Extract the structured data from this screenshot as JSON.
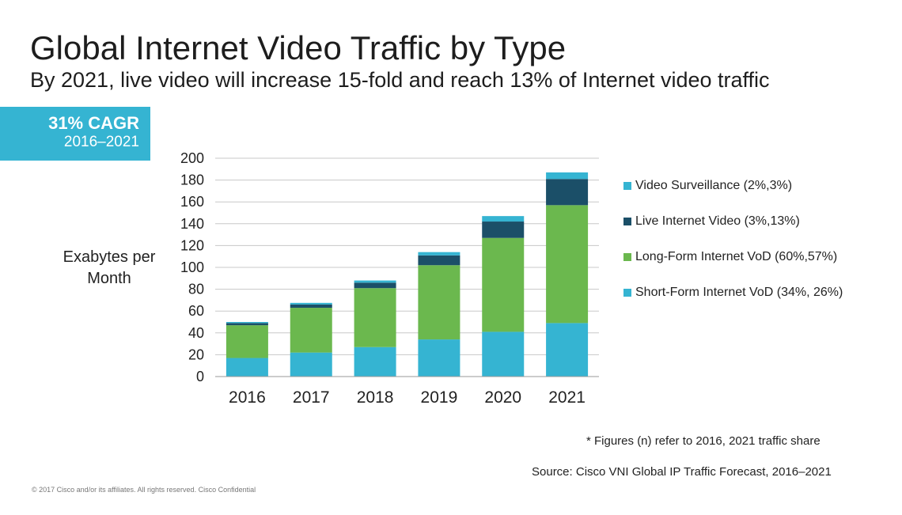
{
  "header": {
    "title": "Global Internet Video Traffic by Type",
    "subtitle": "By 2021, live video will increase 15-fold and reach 13% of Internet video traffic"
  },
  "cagr": {
    "value": "31% CAGR",
    "period": "2016–2021",
    "color": "#35b4d2"
  },
  "footnote": "*  Figures (n) refer to 2016, 2021 traffic share",
  "source": "Source: Cisco VNI Global IP Traffic Forecast, 2016–2021",
  "copyright": "© 2017  Cisco and/or its affiliates. All rights reserved.   Cisco Confidential",
  "chart_data": {
    "type": "bar",
    "stacked": true,
    "title": "",
    "xlabel": "",
    "ylabel": "Exabytes per Month",
    "ylim": [
      0,
      200
    ],
    "yticks": [
      0,
      20,
      40,
      60,
      80,
      100,
      120,
      140,
      160,
      180,
      200
    ],
    "grid": true,
    "legend_position": "right",
    "categories": [
      "2016",
      "2017",
      "2018",
      "2019",
      "2020",
      "2021"
    ],
    "series": [
      {
        "name": "Short-Form Internet VoD (34%, 26%)",
        "color": "#35b4d2",
        "values": [
          17,
          22,
          27,
          34,
          41,
          49
        ]
      },
      {
        "name": "Long-Form Internet VoD (60%,57%)",
        "color": "#6bb84e",
        "values": [
          30,
          41,
          54,
          68,
          86,
          108
        ]
      },
      {
        "name": "Live Internet Video (3%,13%)",
        "color": "#1b4f68",
        "values": [
          2,
          3,
          5,
          9,
          15,
          24
        ]
      },
      {
        "name": "Video Surveillance (2%,3%)",
        "color": "#35b4d2",
        "values": [
          1,
          1.5,
          2,
          3,
          5,
          6
        ]
      }
    ]
  }
}
